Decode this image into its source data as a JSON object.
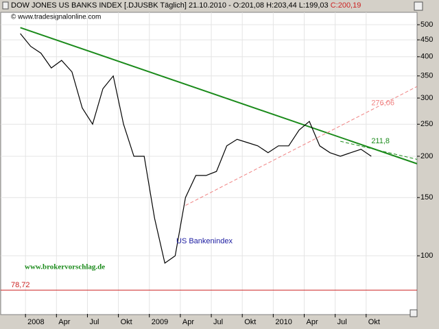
{
  "header": {
    "title": "DOW JONES US BANKS INDEX [.DJUSBK  Täglich] 21.10.2010 - O:201,08 H:203,44 L:199,03",
    "close": "C:200,19",
    "subtitle": "© www.tradesignalonline.com"
  },
  "chart_data": {
    "type": "line",
    "log_scale": true,
    "grid": true,
    "x": [
      "2007-12",
      "2008-01",
      "2008-02",
      "2008-03",
      "2008-04",
      "2008-05",
      "2008-06",
      "2008-07",
      "2008-08",
      "2008-09",
      "2008-10",
      "2008-11",
      "2008-12",
      "2009-01",
      "2009-02",
      "2009-03",
      "2009-04",
      "2009-05",
      "2009-06",
      "2009-07",
      "2009-08",
      "2009-09",
      "2009-10",
      "2009-11",
      "2009-12",
      "2010-01",
      "2010-02",
      "2010-03",
      "2010-04",
      "2010-05",
      "2010-06",
      "2010-07",
      "2010-08",
      "2010-09",
      "2010-10"
    ],
    "series": [
      {
        "name": "US Bankenindex",
        "color": "#000000",
        "values": [
          470,
          430,
          410,
          370,
          390,
          360,
          280,
          250,
          320,
          350,
          250,
          200,
          200,
          130,
          95,
          100,
          150,
          175,
          175,
          180,
          215,
          225,
          220,
          215,
          205,
          215,
          215,
          240,
          255,
          215,
          205,
          200,
          205,
          210,
          200
        ]
      }
    ],
    "xlim": [
      "2007-10",
      "2011-02"
    ],
    "xticks": [
      {
        "value": "2008-01",
        "label": "2008"
      },
      {
        "value": "2008-04",
        "label": "Apr"
      },
      {
        "value": "2008-07",
        "label": "Jul"
      },
      {
        "value": "2008-10",
        "label": "Okt"
      },
      {
        "value": "2009-01",
        "label": "2009"
      },
      {
        "value": "2009-04",
        "label": "Apr"
      },
      {
        "value": "2009-07",
        "label": "Jul"
      },
      {
        "value": "2009-10",
        "label": "Okt"
      },
      {
        "value": "2010-01",
        "label": "2010"
      },
      {
        "value": "2010-04",
        "label": "Apr"
      },
      {
        "value": "2010-07",
        "label": "Jul"
      },
      {
        "value": "2010-10",
        "label": "Okt"
      }
    ],
    "ylim": [
      66.7,
      545
    ],
    "yticks": [
      100,
      150,
      200,
      250,
      300,
      350,
      400,
      450,
      500
    ],
    "trendlines": [
      {
        "color": "#1a8a1a",
        "style": "solid",
        "x": [
          "2007-12",
          "2010-10"
        ],
        "values": [
          490,
          211.8
        ],
        "value_label": "211,8"
      },
      {
        "color": "#1a8a1a",
        "style": "dashed",
        "x": [
          "2010-07",
          "2010-10"
        ],
        "values": [
          222,
          211
        ]
      },
      {
        "color": "#f08080",
        "style": "dashed",
        "x": [
          "2009-04",
          "2010-10"
        ],
        "values": [
          142,
          276.06
        ],
        "value_label": "276,06"
      }
    ],
    "hlines": [
      {
        "color": "#cc2222",
        "value": 78.72,
        "value_label": "78,72"
      }
    ],
    "annotations": [
      {
        "text": "US Bankenindex",
        "color": "#1a1aa0"
      },
      {
        "text": "www.brokervorschlag.de",
        "color": "#1a8a1a"
      }
    ]
  }
}
